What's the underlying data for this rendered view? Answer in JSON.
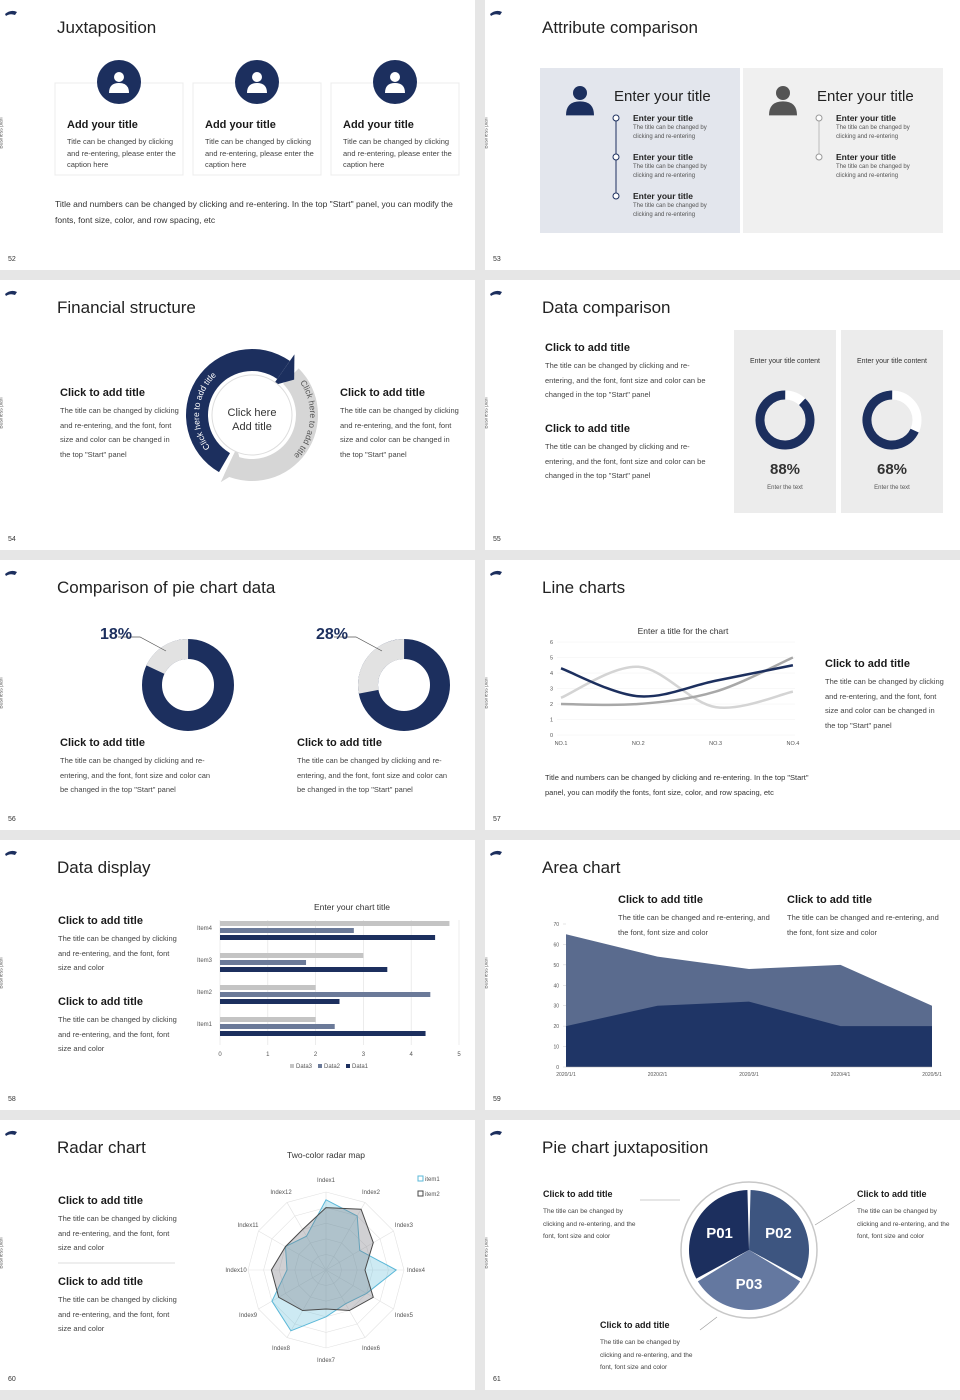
{
  "side_label": "Business plan",
  "slides": [
    {
      "number": "52",
      "title": "Juxtaposition",
      "cards": [
        {
          "title": "Add your title",
          "text": "Title can be changed by clicking and re-entering, please enter the caption here"
        },
        {
          "title": "Add your title",
          "text": "Title can be changed by clicking and re-entering, please enter the caption here"
        },
        {
          "title": "Add your title",
          "text": "Title can be changed by clicking and re-entering, please enter the caption here"
        }
      ],
      "text": "Title and numbers can be changed by clicking and re-entering. In the top \"Start\" panel, you can modify the fonts, font size, color, and row spacing, etc"
    },
    {
      "number": "53",
      "title": "Attribute comparison",
      "panels": [
        {
          "title": "Enter your title",
          "items": [
            {
              "title": "Enter your title",
              "text": "The title can be changed by clicking and re-entering"
            },
            {
              "title": "Enter your title",
              "text": "The title can be changed by clicking and re-entering"
            },
            {
              "title": "Enter your title",
              "text": "The title can be changed by clicking and re-entering"
            }
          ]
        },
        {
          "title": "Enter your title",
          "items": [
            {
              "title": "Enter your title",
              "text": "The title can be changed by clicking and re-entering"
            },
            {
              "title": "Enter your title",
              "text": "The title can be changed by clicking and re-entering"
            }
          ]
        }
      ]
    },
    {
      "number": "54",
      "title": "Financial structure",
      "center": "Click here Add title",
      "arcs": [
        "Click here to add title",
        "Click here to add title"
      ],
      "blocks": [
        {
          "title": "Click to add title",
          "text": "The title can be changed by clicking and re-entering, and the font, font size and color can be changed in the top \"Start\" panel"
        },
        {
          "title": "Click to add title",
          "text": "The title can be changed by clicking and re-entering, and the font, font size and color can be changed in the top \"Start\" panel"
        }
      ]
    },
    {
      "number": "55",
      "title": "Data comparison",
      "blocks": [
        {
          "title": "Click to add title",
          "text": "The title can be changed by clicking and re-entering, and the font, font size and color can be changed in the top \"Start\" panel"
        },
        {
          "title": "Click to add title",
          "text": "The title can be changed by clicking and re-entering, and the font, font size and color can be changed in the top \"Start\" panel"
        }
      ],
      "cards": [
        {
          "heading": "Enter your title content",
          "value": 88,
          "label": "88%",
          "caption": "Enter the text"
        },
        {
          "heading": "Enter your title content",
          "value": 68,
          "label": "68%",
          "caption": "Enter the text"
        }
      ]
    },
    {
      "number": "56",
      "title": "Comparison of pie chart data",
      "pies": [
        {
          "value": 18,
          "label": "18%",
          "title": "Click to add title",
          "text": "The title can be changed by clicking and re-entering, and the font, font size and color can be changed in the top \"Start\" panel"
        },
        {
          "value": 28,
          "label": "28%",
          "title": "Click to add title",
          "text": "The title can be changed by clicking and re-entering, and the font, font size and color can be changed in the top \"Start\" panel"
        }
      ]
    },
    {
      "number": "57",
      "title": "Line charts",
      "chart": {
        "type": "line",
        "title": "Enter a title for the chart",
        "categories": [
          "NO.1",
          "NO.2",
          "NO.3",
          "NO.4"
        ],
        "series": [
          {
            "color": "#1c2f5e",
            "values": [
              4.3,
              2.5,
              3.5,
              4.5
            ]
          },
          {
            "color": "#d4d4d4",
            "values": [
              2.4,
              4.4,
              1.8,
              2.8
            ]
          },
          {
            "color": "#a8a8a8",
            "values": [
              2,
              2,
              2.8,
              5
            ]
          }
        ],
        "ylim": [
          0,
          6
        ],
        "yticks": [
          0,
          1,
          2,
          3,
          4,
          5,
          6
        ]
      },
      "block": {
        "title": "Click to add title",
        "text": "The title can be changed by clicking and re-entering, and the font, font size and color can be changed in the top \"Start\" panel"
      },
      "text": "Title and numbers can be changed by clicking and re-entering. In the top \"Start\" panel, you can modify the fonts, font size, color, and row spacing, etc"
    },
    {
      "number": "58",
      "title": "Data display",
      "blocks": [
        {
          "title": "Click to add title",
          "text": "The title can be changed by clicking and re-entering, and the font, font size and color"
        },
        {
          "title": "Click to add title",
          "text": "The title can be changed by clicking and re-entering, and the font, font size and color"
        }
      ],
      "chart": {
        "type": "bar",
        "title": "Enter your chart title",
        "categories": [
          "Item1",
          "Item2",
          "Item3",
          "Item4"
        ],
        "series": [
          {
            "name": "Data1",
            "color": "#1c2f5e",
            "values": [
              4.3,
              2.5,
              3.5,
              4.5
            ]
          },
          {
            "name": "Data2",
            "color": "#6b7a99",
            "values": [
              2.4,
              4.4,
              1.8,
              2.8
            ]
          },
          {
            "name": "Data3",
            "color": "#c4c4c4",
            "values": [
              2,
              2,
              3,
              4.8
            ]
          }
        ],
        "xlim": [
          0,
          5
        ],
        "xticks": [
          0,
          1,
          2,
          3,
          4,
          5
        ],
        "grid": true
      }
    },
    {
      "number": "59",
      "title": "Area chart",
      "blocks": [
        {
          "title": "Click to add title",
          "text": "The title can be changed and re-entering, and the font, font size and color"
        },
        {
          "title": "Click to add title",
          "text": "The title can be changed and re-entering, and the font, font size and color"
        }
      ],
      "chart": {
        "type": "area",
        "categories": [
          "2020/1/1",
          "2020/2/1",
          "2020/3/1",
          "2020/4/1",
          "2020/5/1"
        ],
        "series": [
          {
            "color": "#5a6b8e",
            "values": [
              65,
              54,
              48,
              50,
              30
            ]
          },
          {
            "color": "#1f3566",
            "values": [
              20,
              30,
              32,
              20,
              20
            ]
          }
        ],
        "ylim": [
          0,
          70
        ],
        "yticks": [
          0,
          10,
          20,
          30,
          40,
          50,
          60,
          70
        ]
      }
    },
    {
      "number": "60",
      "title": "Radar chart",
      "blocks": [
        {
          "title": "Click to add title",
          "text": "The title can be changed by clicking and re-entering, and the font, font size and color"
        },
        {
          "title": "Click to add title",
          "text": "The title can be changed by clicking and re-entering, and the font, font size and color"
        }
      ],
      "chart": {
        "type": "radar",
        "title": "Two-color radar map",
        "categories": [
          "Index1",
          "Index2",
          "Index3",
          "Index4",
          "Index5",
          "Index6",
          "Index7",
          "Index8",
          "Index9",
          "Index10",
          "Index11",
          "Index12"
        ],
        "series": [
          {
            "name": "item1",
            "color": "#5bb8d8",
            "values": [
              9,
              8,
              5,
              9,
              6,
              5,
              6,
              9,
              8,
              5,
              6,
              5
            ]
          },
          {
            "name": "item2",
            "color": "#4a4a4a",
            "values": [
              8,
              9,
              7,
              5,
              7,
              6,
              5,
              6,
              7,
              7,
              6,
              6
            ]
          }
        ],
        "rlim": [
          0,
          10
        ]
      }
    },
    {
      "number": "61",
      "title": "Pie chart juxtaposition",
      "segments": [
        "P01",
        "P02",
        "P03"
      ],
      "blocks": [
        {
          "title": "Click to add title",
          "text": "The title can be changed by clicking and re-entering, and the font, font size and color"
        },
        {
          "title": "Click to add title",
          "text": "The title can be changed by clicking and re-entering, and the font, font size and color"
        },
        {
          "title": "Click to add title",
          "text": "The title can be changed by clicking and re-entering, and the font, font size and color"
        }
      ]
    }
  ]
}
